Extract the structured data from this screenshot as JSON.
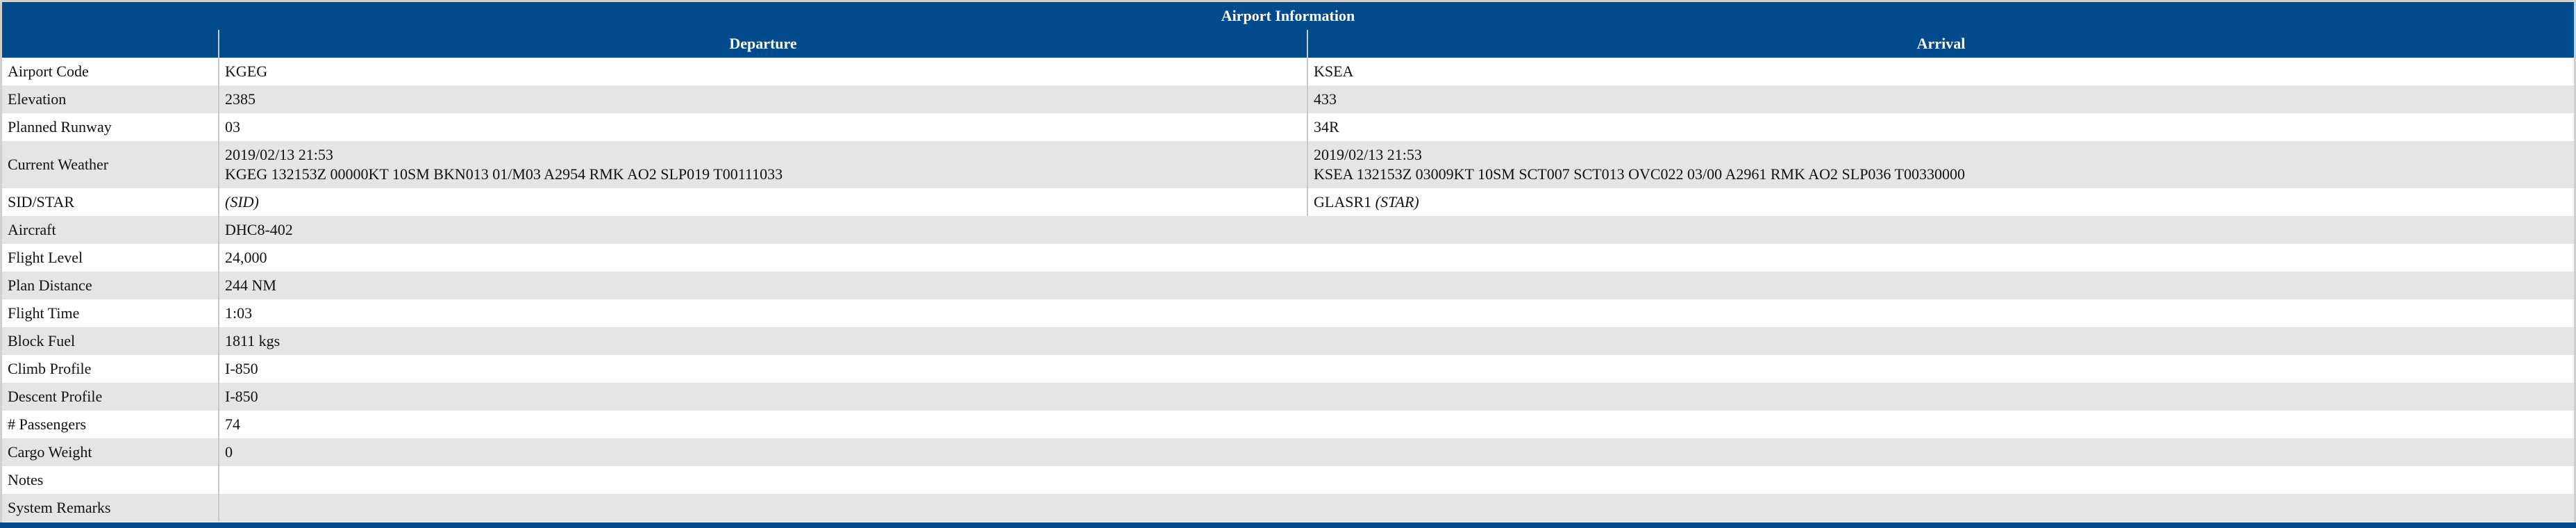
{
  "title": "Airport Information",
  "columns": {
    "departure": "Departure",
    "arrival": "Arrival"
  },
  "airport_rows": [
    {
      "label": "Airport Code",
      "dep": "KGEG",
      "arr": "KSEA"
    },
    {
      "label": "Elevation",
      "dep": "2385",
      "arr": "433"
    },
    {
      "label": "Planned Runway",
      "dep": "03",
      "arr": "34R"
    }
  ],
  "weather": {
    "label": "Current Weather",
    "dep_time": "2019/02/13 21:53",
    "dep_metar": "KGEG 132153Z 00000KT 10SM BKN013 01/M03 A2954 RMK AO2 SLP019 T00111033",
    "arr_time": "2019/02/13 21:53",
    "arr_metar": "KSEA 132153Z 03009KT 10SM SCT007 SCT013 OVC022 03/00 A2961 RMK AO2 SLP036 T00330000"
  },
  "sidstar": {
    "label": "SID/STAR",
    "dep_name": "",
    "dep_type": "(SID)",
    "arr_name": "GLASR1",
    "arr_type": "(STAR)"
  },
  "flight_rows": [
    {
      "label": "Aircraft",
      "value": "DHC8-402"
    },
    {
      "label": "Flight Level",
      "value": "24,000"
    },
    {
      "label": "Plan Distance",
      "value": "244 NM"
    },
    {
      "label": "Flight Time",
      "value": "1:03"
    },
    {
      "label": "Block Fuel",
      "value": "1811 kgs"
    },
    {
      "label": "Climb Profile",
      "value": "I-850"
    },
    {
      "label": "Descent Profile",
      "value": "I-850"
    },
    {
      "label": "# Passengers",
      "value": "74"
    },
    {
      "label": "Cargo Weight",
      "value": "0"
    },
    {
      "label": "Notes",
      "value": ""
    },
    {
      "label": "System Remarks",
      "value": ""
    }
  ],
  "colors": {
    "header": "#014a8c",
    "stripe": "#e5e5e5"
  }
}
